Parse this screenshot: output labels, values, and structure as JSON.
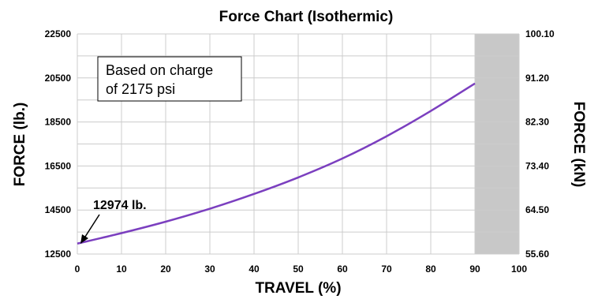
{
  "chart_data": {
    "type": "line",
    "title": "Force Chart (Isothermic)",
    "xlabel": "TRAVEL (%)",
    "ylabel": "FORCE (lb.)",
    "y2label": "FORCE (kN)",
    "xlim": [
      0,
      100
    ],
    "ylim": [
      12500,
      22500
    ],
    "y2lim": [
      55.6,
      100.1
    ],
    "x_ticks": [
      "0",
      "10",
      "20",
      "30",
      "40",
      "50",
      "60",
      "70",
      "80",
      "90",
      "100"
    ],
    "y_ticks": [
      "12500",
      "14500",
      "16500",
      "18500",
      "20500",
      "22500"
    ],
    "y2_ticks": [
      "55.60",
      "64.50",
      "73.40",
      "82.30",
      "91.20",
      "100.10"
    ],
    "grid": true,
    "series": [
      {
        "color": "#7b3fbf",
        "x": [
          0,
          10,
          20,
          30,
          40,
          50,
          60,
          70,
          80,
          90
        ],
        "y": [
          12974,
          13450,
          13970,
          14560,
          15230,
          15980,
          16840,
          17850,
          19000,
          20250
        ]
      }
    ],
    "shaded_region": {
      "x_from": 90,
      "x_to": 100,
      "color": "#c8c8c8"
    },
    "annotations": {
      "note_line1": "Based on charge",
      "note_line2": "of 2175 psi",
      "start_label": "12974 lb."
    }
  }
}
